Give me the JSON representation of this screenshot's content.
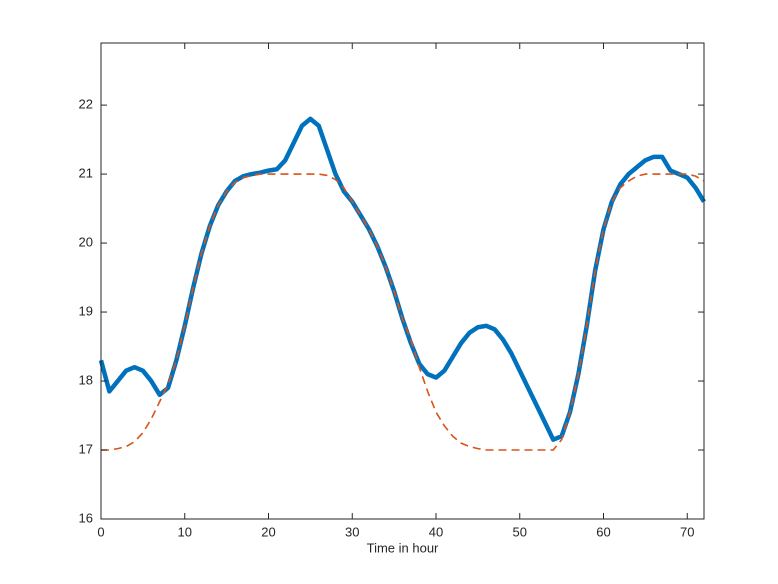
{
  "chart_data": {
    "type": "line",
    "x_label": "Time in hour",
    "x": [
      0,
      1,
      2,
      3,
      4,
      5,
      6,
      7,
      8,
      9,
      10,
      11,
      12,
      13,
      14,
      15,
      16,
      17,
      18,
      19,
      20,
      21,
      22,
      23,
      24,
      25,
      26,
      27,
      28,
      29,
      30,
      31,
      32,
      33,
      34,
      35,
      36,
      37,
      38,
      39,
      40,
      41,
      42,
      43,
      44,
      45,
      46,
      47,
      48,
      49,
      50,
      51,
      52,
      53,
      54,
      55,
      56,
      57,
      58,
      59,
      60,
      61,
      62,
      63,
      64,
      65,
      66,
      67,
      68,
      69,
      70,
      71,
      72
    ],
    "series": [
      {
        "color": "#0072bd",
        "style": "solid",
        "values": [
          18.3,
          17.85,
          18.0,
          18.15,
          18.2,
          18.15,
          18.0,
          17.8,
          17.9,
          18.3,
          18.8,
          19.35,
          19.85,
          20.25,
          20.55,
          20.75,
          20.9,
          20.97,
          21.0,
          21.02,
          21.05,
          21.07,
          21.2,
          21.45,
          21.7,
          21.8,
          21.7,
          21.35,
          21.0,
          20.75,
          20.6,
          20.4,
          20.2,
          19.95,
          19.65,
          19.3,
          18.9,
          18.55,
          18.25,
          18.1,
          18.05,
          18.15,
          18.35,
          18.55,
          18.7,
          18.78,
          18.8,
          18.75,
          18.6,
          18.4,
          18.15,
          17.9,
          17.65,
          17.4,
          17.15,
          17.2,
          17.55,
          18.1,
          18.8,
          19.6,
          20.2,
          20.6,
          20.85,
          21.0,
          21.1,
          21.2,
          21.25,
          21.25,
          21.05,
          21.0,
          20.95,
          20.8,
          20.6
        ]
      },
      {
        "color": "#d95319",
        "style": "dashed",
        "values": [
          17,
          17,
          17.02,
          17.05,
          17.12,
          17.25,
          17.45,
          17.7,
          17.95,
          18.3,
          18.8,
          19.35,
          19.85,
          20.25,
          20.55,
          20.75,
          20.88,
          20.95,
          20.98,
          21,
          21,
          21,
          21,
          21,
          21,
          21,
          21,
          20.98,
          20.92,
          20.8,
          20.6,
          20.4,
          20.2,
          19.95,
          19.65,
          19.3,
          18.9,
          18.6,
          18.2,
          17.85,
          17.55,
          17.35,
          17.2,
          17.1,
          17.05,
          17.02,
          17,
          17,
          17,
          17,
          17,
          17,
          17,
          17,
          17,
          17.15,
          17.55,
          18.1,
          18.8,
          19.6,
          20.2,
          20.6,
          20.8,
          20.9,
          20.97,
          21,
          21,
          21,
          21,
          21,
          21,
          20.97,
          20.9
        ]
      }
    ],
    "xlim": [
      0,
      72
    ],
    "xticks": [
      0,
      10,
      20,
      30,
      40,
      50,
      60,
      70
    ],
    "ylim": [
      16,
      22.9
    ],
    "yticks": [
      16,
      17,
      18,
      19,
      20,
      21,
      22
    ]
  }
}
